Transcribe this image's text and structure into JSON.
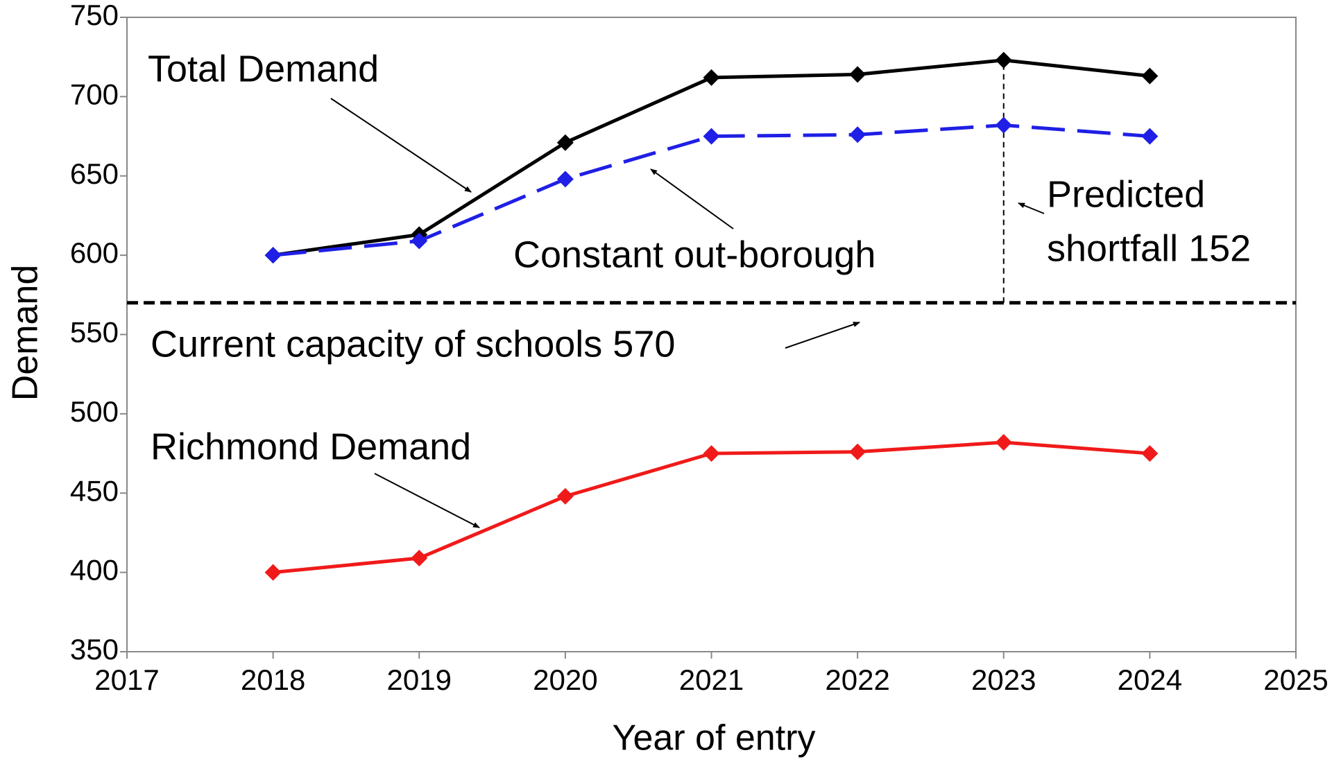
{
  "chart_data": {
    "type": "line",
    "x_label": "Year of entry",
    "y_label": "Demand",
    "x": [
      2018,
      2019,
      2020,
      2021,
      2022,
      2023,
      2024
    ],
    "series": [
      {
        "color": "#000000",
        "dash": false,
        "values": [
          600,
          613,
          671,
          712,
          714,
          723,
          713
        ]
      },
      {
        "color": "#1f1fe6",
        "dash": true,
        "values": [
          600,
          609,
          648,
          675,
          676,
          682,
          675
        ]
      },
      {
        "color": "#f01a1a",
        "dash": false,
        "values": [
          400,
          409,
          448,
          475,
          476,
          482,
          475
        ]
      }
    ],
    "capacity": 570,
    "annotations": [
      "Total Demand",
      "Constant out-borough",
      "Predicted",
      "shortfall 152",
      "Current capacity of schools 570",
      "Richmond Demand"
    ],
    "xlim": [
      2017,
      2025
    ],
    "xticks": [
      2017,
      2018,
      2019,
      2020,
      2021,
      2022,
      2023,
      2024,
      2025
    ],
    "ylim": [
      350,
      750
    ],
    "yticks": [
      350,
      400,
      450,
      500,
      550,
      600,
      650,
      700,
      750
    ]
  }
}
